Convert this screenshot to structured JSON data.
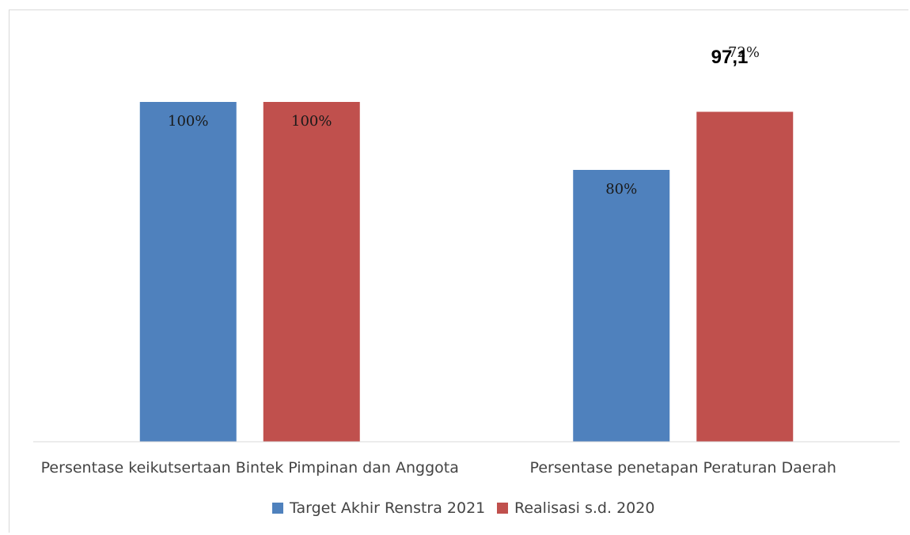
{
  "chart_data": {
    "type": "bar",
    "title": "",
    "xlabel": "",
    "ylabel": "",
    "ylim": [
      0,
      100
    ],
    "grid": false,
    "legend_position": "bottom",
    "categories": [
      "Persentase keikutsertaan Bintek Pimpinan dan Anggota",
      "Persentase penetapan Peraturan Daerah"
    ],
    "series": [
      {
        "name": "Target Akhir Renstra 2021",
        "color": "#4f81bd",
        "values": [
          100,
          80
        ],
        "labels": [
          "100%",
          "80%"
        ]
      },
      {
        "name": "Realisasi s.d. 2020",
        "color": "#c0504d",
        "values": [
          100,
          97.1
        ],
        "labels": [
          "100%",
          "97,1"
        ]
      }
    ],
    "annotations": [
      "97,1",
      "72%"
    ]
  }
}
